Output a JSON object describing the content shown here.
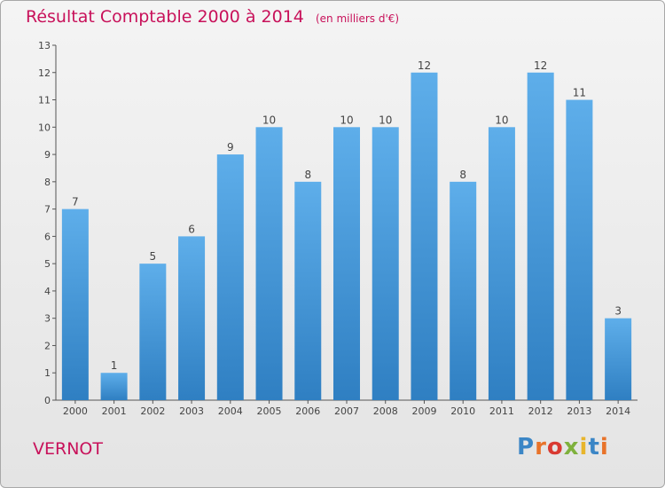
{
  "title": "Résultat Comptable 2000 à 2014",
  "unit_label": "(en milliers d'€)",
  "commune": "VERNOT",
  "logo": [
    "P",
    "r",
    "o",
    "x",
    "i",
    "t",
    "i"
  ],
  "colors": {
    "bar": "#3a8fd4",
    "accent": "#c8115a"
  },
  "chart_data": {
    "type": "bar",
    "title": "Résultat Comptable 2000 à 2014",
    "xlabel": "",
    "ylabel": "",
    "categories": [
      "2000",
      "2001",
      "2002",
      "2003",
      "2004",
      "2005",
      "2006",
      "2007",
      "2008",
      "2009",
      "2010",
      "2011",
      "2012",
      "2013",
      "2014"
    ],
    "values": [
      7,
      1,
      5,
      6,
      9,
      10,
      8,
      10,
      10,
      12,
      8,
      10,
      12,
      11,
      3
    ],
    "ylim": [
      0,
      13
    ],
    "yticks": [
      0,
      1,
      2,
      3,
      4,
      5,
      6,
      7,
      8,
      9,
      10,
      11,
      12,
      13
    ],
    "grid": false
  }
}
